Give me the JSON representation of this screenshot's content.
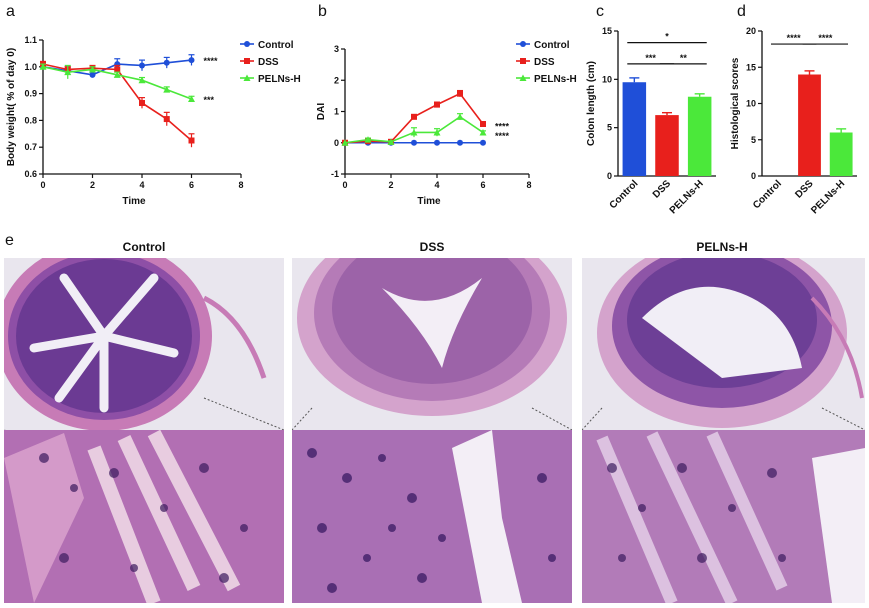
{
  "panel_letters": {
    "a": "a",
    "b": "b",
    "c": "c",
    "d": "d",
    "e": "e"
  },
  "chart_data": [
    {
      "id": "a",
      "type": "line",
      "xlabel": "Time",
      "ylabel": "Body weight( % of day 0)",
      "xlim": [
        0,
        8
      ],
      "ylim": [
        0.6,
        1.1
      ],
      "xticks": [
        "0",
        "2",
        "4",
        "6",
        "8"
      ],
      "yticks": [
        "0.6",
        "0.7",
        "0.8",
        "0.9",
        "1.0",
        "1.1"
      ],
      "legend_position": "top-right",
      "x": [
        0,
        1,
        2,
        3,
        4,
        5,
        6
      ],
      "series": [
        {
          "name": "Control",
          "color": "#1f4fd8",
          "marker": "circle",
          "values": [
            1.0,
            0.985,
            0.97,
            1.01,
            1.005,
            1.015,
            1.025
          ],
          "errors": [
            0.01,
            0.015,
            0.01,
            0.02,
            0.02,
            0.02,
            0.02
          ]
        },
        {
          "name": "DSS",
          "color": "#e8201c",
          "marker": "square",
          "values": [
            1.01,
            0.99,
            0.995,
            0.99,
            0.865,
            0.805,
            0.725
          ],
          "errors": [
            0.01,
            0.01,
            0.01,
            0.015,
            0.02,
            0.025,
            0.025
          ]
        },
        {
          "name": "PELNs-H",
          "color": "#4be83a",
          "marker": "triangle",
          "values": [
            1.0,
            0.98,
            0.99,
            0.97,
            0.95,
            0.915,
            0.88
          ],
          "errors": [
            0.01,
            0.025,
            0.01,
            0.01,
            0.01,
            0.01,
            0.01
          ]
        }
      ],
      "annotations": [
        {
          "text": "****",
          "x": 6,
          "y": 1.025
        },
        {
          "text": "***",
          "x": 6,
          "y": 0.88
        }
      ]
    },
    {
      "id": "b",
      "type": "line",
      "xlabel": "Time",
      "ylabel": "DAI",
      "xlim": [
        0,
        8
      ],
      "ylim": [
        -1,
        3
      ],
      "xticks": [
        "0",
        "2",
        "4",
        "6",
        "8"
      ],
      "yticks": [
        "-1",
        "0",
        "1",
        "2",
        "3"
      ],
      "legend_position": "top-right",
      "x": [
        0,
        1,
        2,
        3,
        4,
        5,
        6
      ],
      "series": [
        {
          "name": "Control",
          "color": "#1f4fd8",
          "marker": "circle",
          "values": [
            0,
            0,
            0,
            0,
            0,
            0,
            0
          ],
          "errors": [
            0,
            0,
            0,
            0,
            0,
            0,
            0
          ]
        },
        {
          "name": "DSS",
          "color": "#e8201c",
          "marker": "square",
          "values": [
            0,
            0.05,
            0.03,
            0.83,
            1.22,
            1.57,
            0.6
          ],
          "errors": [
            0,
            0.05,
            0.03,
            0.05,
            0.08,
            0.1,
            0.05
          ]
        },
        {
          "name": "PELNs-H",
          "color": "#4be83a",
          "marker": "triangle",
          "values": [
            0,
            0.1,
            0.03,
            0.33,
            0.33,
            0.83,
            0.33
          ],
          "errors": [
            0,
            0.05,
            0.03,
            0.15,
            0.12,
            0.1,
            0.05
          ]
        }
      ],
      "annotations": [
        {
          "text": "****",
          "x": 6,
          "y": 0.55
        },
        {
          "text": "****",
          "x": 6,
          "y": 0.25
        }
      ]
    },
    {
      "id": "c",
      "type": "bar",
      "ylabel": "Colon  length (cm)",
      "ylim": [
        0,
        15
      ],
      "yticks": [
        "0",
        "5",
        "10",
        "15"
      ],
      "categories": [
        "Control",
        "DSS",
        "PELNs-H"
      ],
      "values": [
        9.7,
        6.3,
        8.2
      ],
      "errors": [
        0.45,
        0.25,
        0.3
      ],
      "colors": [
        "#1f4fd8",
        "#e8201c",
        "#4be83a"
      ],
      "significance": [
        {
          "from": 0,
          "to": 2,
          "text": "*",
          "level": 13.8
        },
        {
          "from": 0,
          "to": 1,
          "text": "***",
          "level": 11.6
        },
        {
          "from": 1,
          "to": 2,
          "text": "**",
          "level": 11.6
        }
      ]
    },
    {
      "id": "d",
      "type": "bar",
      "ylabel": "Histological scores",
      "ylim": [
        0,
        20
      ],
      "yticks": [
        "0",
        "5",
        "10",
        "15",
        "20"
      ],
      "categories": [
        "Control",
        "DSS",
        "PELNs-H"
      ],
      "values": [
        0,
        14,
        6
      ],
      "errors": [
        0,
        0.5,
        0.5
      ],
      "colors": [
        "#1f4fd8",
        "#e8201c",
        "#4be83a"
      ],
      "significance": [
        {
          "from": 0,
          "to": 1,
          "text": "****",
          "level": 18.2
        },
        {
          "from": 1,
          "to": 2,
          "text": "****",
          "level": 18.2
        }
      ]
    }
  ],
  "histology": {
    "titles": [
      "Control",
      "DSS",
      "PELNs-H"
    ]
  }
}
